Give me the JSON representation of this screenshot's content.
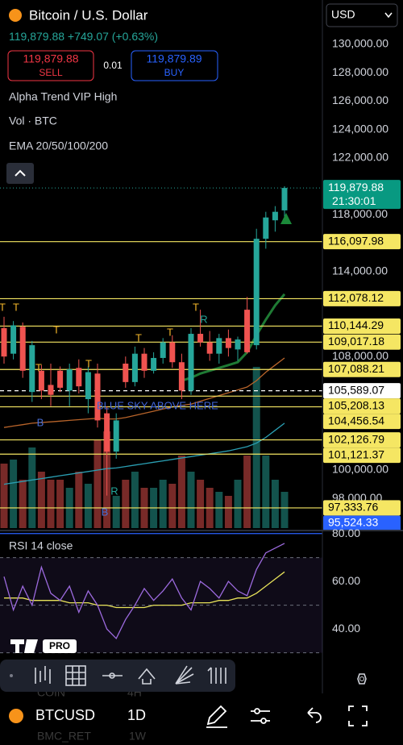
{
  "header": {
    "symbol_name": "Bitcoin / U.S. Dollar",
    "price": "119,879.88",
    "change": "+749.07 (+0.63%)",
    "currency": "USD"
  },
  "trade": {
    "sell_price": "119,879.88",
    "sell": "SELL",
    "spread": "0.01",
    "buy_price": "119,879.89",
    "buy": "BUY"
  },
  "indicators": [
    "Alpha Trend VIP High",
    "Vol · BTC",
    "EMA 20/50/100/200"
  ],
  "chart_data": {
    "type": "candlestick",
    "ylim": [
      95909,
      133125
    ],
    "yticks": [
      {
        "value": 130000,
        "label": "130,000.00"
      },
      {
        "value": 128000,
        "label": "128,000.00"
      },
      {
        "value": 126000,
        "label": "126,000.00"
      },
      {
        "value": 124000,
        "label": "124,000.00"
      },
      {
        "value": 122000,
        "label": "122,000.00"
      },
      {
        "value": 118000,
        "label": "118,000.00"
      },
      {
        "value": 114000,
        "label": "114,000.00"
      },
      {
        "value": 108000,
        "label": "108,000.00"
      },
      {
        "value": 100000,
        "label": "100,000.00"
      },
      {
        "value": 98000,
        "label": "98,000.00"
      }
    ],
    "up_color": "#26a69a",
    "down_color": "#ef5350",
    "candles": [
      {
        "open": 110000,
        "high": 110800,
        "low": 107500,
        "close": 108000
      },
      {
        "open": 108200,
        "high": 110500,
        "low": 107800,
        "close": 110200
      },
      {
        "open": 110100,
        "high": 110400,
        "low": 106500,
        "close": 107000
      },
      {
        "open": 105500,
        "high": 109100,
        "low": 104800,
        "close": 108800
      },
      {
        "open": 107000,
        "high": 107400,
        "low": 105000,
        "close": 105600
      },
      {
        "open": 106000,
        "high": 107500,
        "low": 104500,
        "close": 105300
      },
      {
        "open": 107000,
        "high": 107300,
        "low": 105500,
        "close": 105800
      },
      {
        "open": 105600,
        "high": 107500,
        "low": 104500,
        "close": 107100
      },
      {
        "open": 107200,
        "high": 107800,
        "low": 105400,
        "close": 105900
      },
      {
        "open": 105000,
        "high": 107300,
        "low": 104000,
        "close": 106900
      },
      {
        "open": 106800,
        "high": 107500,
        "low": 103000,
        "close": 103500
      },
      {
        "open": 104000,
        "high": 104500,
        "low": 98200,
        "close": 101300
      },
      {
        "open": 101300,
        "high": 104000,
        "low": 100800,
        "close": 103500
      },
      {
        "open": 107500,
        "high": 108000,
        "low": 105800,
        "close": 106200
      },
      {
        "open": 106200,
        "high": 108700,
        "low": 105900,
        "close": 108200
      },
      {
        "open": 108200,
        "high": 108600,
        "low": 106500,
        "close": 107000
      },
      {
        "open": 107000,
        "high": 108300,
        "low": 106800,
        "close": 107900
      },
      {
        "open": 107900,
        "high": 109300,
        "low": 107500,
        "close": 109000
      },
      {
        "open": 109000,
        "high": 109500,
        "low": 107200,
        "close": 107600
      },
      {
        "open": 107600,
        "high": 108200,
        "low": 105000,
        "close": 105600
      },
      {
        "open": 105600,
        "high": 110000,
        "low": 105300,
        "close": 109600
      },
      {
        "open": 109600,
        "high": 111300,
        "low": 108700,
        "close": 109000
      },
      {
        "open": 109000,
        "high": 109800,
        "low": 107700,
        "close": 108200
      },
      {
        "open": 108200,
        "high": 109600,
        "low": 107500,
        "close": 109300
      },
      {
        "open": 109300,
        "high": 109900,
        "low": 108000,
        "close": 108600
      },
      {
        "open": 108500,
        "high": 109400,
        "low": 107700,
        "close": 109200
      },
      {
        "open": 111300,
        "high": 112200,
        "low": 108200,
        "close": 108300
      },
      {
        "open": 108800,
        "high": 117000,
        "low": 108500,
        "close": 116300
      },
      {
        "open": 116300,
        "high": 118200,
        "low": 115600,
        "close": 117800
      },
      {
        "open": 117600,
        "high": 118600,
        "low": 116800,
        "close": 118200
      },
      {
        "open": 118300,
        "high": 120000,
        "low": 117500,
        "close": 119879.88
      }
    ],
    "volume": [
      80,
      85,
      60,
      100,
      70,
      60,
      60,
      50,
      70,
      55,
      110,
      120,
      40,
      60,
      70,
      50,
      50,
      60,
      55,
      90,
      70,
      60,
      50,
      45,
      40,
      60,
      90,
      200,
      90,
      60,
      45
    ],
    "ema": [
      {
        "color": "#1f7a34",
        "values": [
          null,
          null,
          null,
          null,
          null,
          null,
          null,
          null,
          null,
          null,
          null,
          null,
          null,
          null,
          null,
          null,
          null,
          null,
          null,
          106300,
          106500,
          106800,
          107000,
          107200,
          107400,
          107600,
          108300,
          109500,
          110600,
          111600,
          112400
        ]
      },
      {
        "color": "#b8642a",
        "values": [
          103000,
          103100,
          103200,
          103300,
          103350,
          103400,
          103450,
          103500,
          103550,
          103600,
          103650,
          103600,
          103600,
          103700,
          103850,
          104000,
          104150,
          104300,
          104450,
          104550,
          104650,
          104850,
          105050,
          105250,
          105450,
          105650,
          105850,
          106300,
          106900,
          107400,
          107900
        ]
      },
      {
        "color": "#2a9fb3",
        "values": [
          99000,
          99100,
          99200,
          99300,
          99400,
          99500,
          99600,
          99700,
          99800,
          99900,
          100000,
          100100,
          100150,
          100250,
          100350,
          100450,
          100550,
          100650,
          100750,
          100850,
          100950,
          101050,
          101150,
          101250,
          101350,
          101500,
          101650,
          101900,
          102300,
          102800,
          103300
        ]
      }
    ],
    "last_price": {
      "value": 119879.88,
      "label": "119,879.88",
      "countdown": "21:30:01"
    },
    "levels": [
      {
        "value": 116097.98,
        "label": "116,097.98",
        "color": "#f5e663"
      },
      {
        "value": 112078.12,
        "label": "112,078.12",
        "color": "#f5e663"
      },
      {
        "value": 110144.29,
        "label": "110,144.29",
        "color": "#f5e663"
      },
      {
        "value": 109017.18,
        "label": "109,017.18",
        "color": "#f5e663"
      },
      {
        "value": 107088.21,
        "label": "107,088.21",
        "color": "#f5e663"
      },
      {
        "value": 105589.07,
        "label": "105,589.07",
        "color": "#ffffff"
      },
      {
        "value": 105208.13,
        "label": "105,208.13",
        "color": "#f5e663"
      },
      {
        "value": 104456.54,
        "label": "104,456.54",
        "color": "#f5e663"
      },
      {
        "value": 102126.79,
        "label": "102,126.79",
        "color": "#f5e663"
      },
      {
        "value": 101121.37,
        "label": "101,121.37",
        "color": "#f5e663"
      },
      {
        "value": 97333.76,
        "label": "97,333.76",
        "color": "#f5e663"
      },
      {
        "value": 95524.33,
        "label": "95,524.33",
        "color": "#2962ff"
      }
    ],
    "annotation": "BLUE SKY ABOVE HERE",
    "signals": [
      "T",
      "T",
      "T",
      "T",
      "T",
      "T",
      "T",
      "T",
      "R",
      "R",
      "B",
      "B"
    ]
  },
  "rsi": {
    "title": "RSI 14 close",
    "ylim": [
      13.6,
      80.7
    ],
    "yticks": [
      {
        "value": 80,
        "label": "80.00"
      },
      {
        "value": 60,
        "label": "60.00"
      },
      {
        "value": 40,
        "label": "40.00"
      }
    ],
    "bands": [
      70,
      50,
      30
    ],
    "color": "#9c6ade",
    "ma_color": "#e8e35a",
    "values": [
      62,
      48,
      58,
      50,
      66,
      55,
      52,
      58,
      47,
      56,
      50,
      40,
      36,
      44,
      50,
      57,
      52,
      56,
      61,
      53,
      48,
      60,
      57,
      53,
      60,
      56,
      54,
      65,
      72,
      74,
      76
    ],
    "ma": [
      53,
      53,
      53,
      52,
      52,
      52,
      52,
      51,
      51,
      51,
      50,
      50,
      49,
      49,
      49,
      49,
      50,
      50,
      50,
      50,
      51,
      51,
      51,
      52,
      52,
      53,
      53,
      55,
      58,
      61,
      64
    ]
  },
  "logo": "PRO",
  "ghost_rows": [
    [
      "COIN",
      "4H"
    ],
    [
      "BMC_RET",
      "1W"
    ]
  ],
  "bottom_bar": {
    "symbol": "BTCUSD",
    "interval": "1D"
  }
}
